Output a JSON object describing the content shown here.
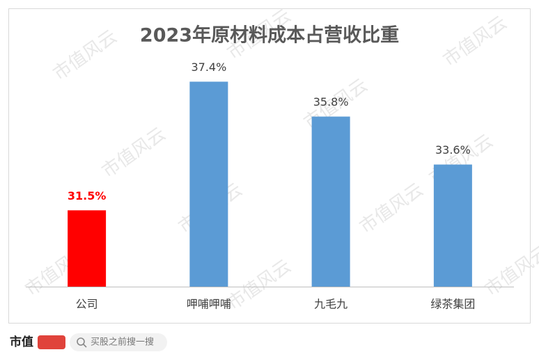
{
  "chart_data": {
    "type": "bar",
    "title": "2023年原材料成本占营收比重",
    "categories": [
      "公司",
      "呷哺呷哺",
      "九毛九",
      "绿茶集团"
    ],
    "values": [
      31.5,
      37.4,
      35.8,
      33.6
    ],
    "value_labels": [
      "31.5%",
      "37.4%",
      "35.8%",
      "33.6%"
    ],
    "colors": [
      "#ff0000",
      "#5b9bd5",
      "#5b9bd5",
      "#5b9bd5"
    ],
    "label_colors": [
      "#ff0000",
      "#404040",
      "#404040",
      "#404040"
    ],
    "ylim": [
      28,
      38
    ]
  },
  "watermark": "市值风云",
  "footer": {
    "logo": "市值",
    "search_placeholder": "买股之前搜一搜"
  }
}
